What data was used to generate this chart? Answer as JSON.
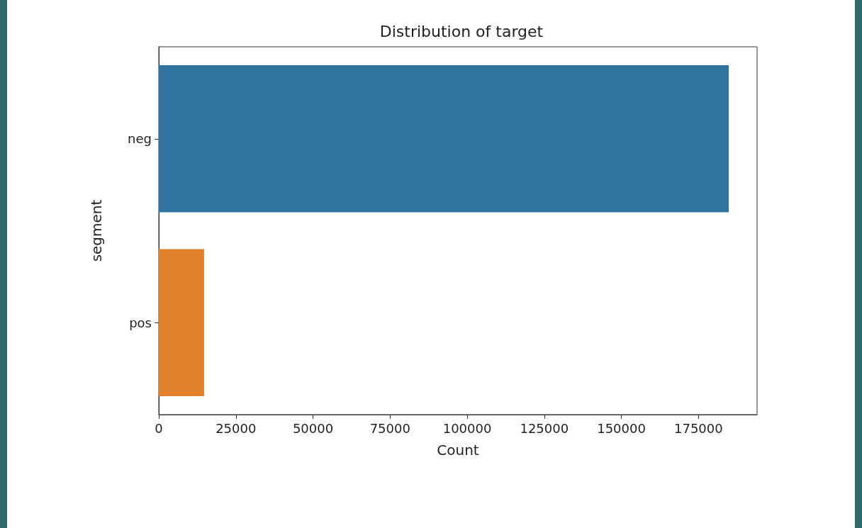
{
  "chart_data": {
    "type": "bar",
    "orientation": "horizontal",
    "title": "Distribution of target",
    "xlabel": "Count",
    "ylabel": "segment",
    "categories": [
      "neg",
      "pos"
    ],
    "values": [
      184800,
      14700
    ],
    "colors": [
      "#3274a1",
      "#e1812c"
    ],
    "xlim": [
      0,
      194000
    ],
    "xticks": [
      0,
      25000,
      50000,
      75000,
      100000,
      125000,
      150000,
      175000
    ],
    "grid": false
  }
}
